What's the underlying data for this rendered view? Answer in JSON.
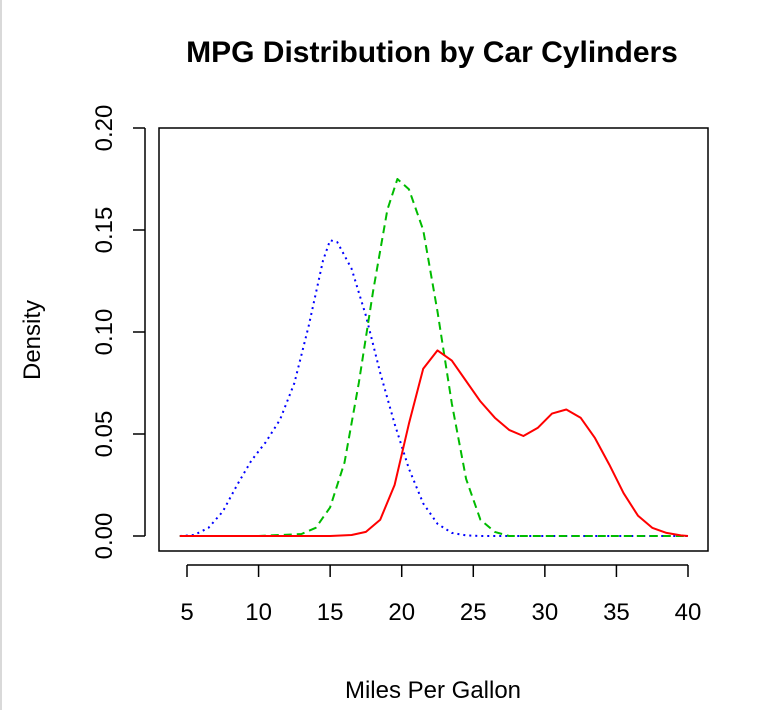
{
  "chart_data": {
    "type": "line",
    "title": "MPG Distribution by Car Cylinders",
    "xlabel": "Miles Per Gallon",
    "ylabel": "Density",
    "xlim": [
      5,
      40
    ],
    "ylim": [
      0,
      0.2
    ],
    "x_ticks": [
      "5",
      "10",
      "15",
      "20",
      "25",
      "30",
      "35",
      "40"
    ],
    "y_ticks": [
      "0.00",
      "0.05",
      "0.10",
      "0.15",
      "0.20"
    ],
    "grid": false,
    "legend": "none",
    "series": [
      {
        "color": "#0000ff",
        "line_style": "dotted",
        "x": [
          4.5,
          5.5,
          6.5,
          7.5,
          8.5,
          9.5,
          10.5,
          11.5,
          12.5,
          13.5,
          14.5,
          15.0,
          15.5,
          16.5,
          17.5,
          18.5,
          19.5,
          20.5,
          21.5,
          22.5,
          23.5,
          24.5,
          25.5,
          26.5,
          28,
          30,
          35,
          40
        ],
        "y": [
          0.0,
          0.0005,
          0.004,
          0.012,
          0.025,
          0.037,
          0.046,
          0.057,
          0.075,
          0.103,
          0.135,
          0.145,
          0.144,
          0.131,
          0.108,
          0.08,
          0.055,
          0.033,
          0.016,
          0.006,
          0.0015,
          0.0003,
          0.0,
          0.0,
          0.0,
          0.0,
          0.0,
          0.0
        ]
      },
      {
        "color": "#00bb00",
        "line_style": "dashed",
        "x": [
          4.5,
          10,
          13,
          14,
          15,
          16,
          17,
          18,
          19,
          19.7,
          20.5,
          21.5,
          22.5,
          23.5,
          24.5,
          25.5,
          26.5,
          27.5,
          30,
          35,
          40
        ],
        "y": [
          0.0,
          0.0,
          0.001,
          0.004,
          0.014,
          0.036,
          0.075,
          0.12,
          0.16,
          0.175,
          0.17,
          0.15,
          0.11,
          0.065,
          0.028,
          0.008,
          0.002,
          0.0,
          0.0,
          0.0,
          0.0
        ]
      },
      {
        "color": "#ff0000",
        "line_style": "solid",
        "x": [
          4.5,
          10,
          15,
          16.5,
          17.5,
          18.5,
          19.5,
          20.5,
          21.5,
          22.5,
          23.5,
          24.5,
          25.5,
          26.5,
          27.5,
          28.5,
          29.5,
          30.5,
          31.5,
          32.5,
          33.5,
          34.5,
          35.5,
          36.5,
          37.5,
          38.5,
          39.5,
          40
        ],
        "y": [
          0.0,
          0.0,
          0.0,
          0.0005,
          0.002,
          0.008,
          0.025,
          0.055,
          0.082,
          0.091,
          0.086,
          0.076,
          0.066,
          0.058,
          0.052,
          0.049,
          0.053,
          0.06,
          0.062,
          0.058,
          0.048,
          0.035,
          0.021,
          0.01,
          0.004,
          0.0015,
          0.0003,
          0.0
        ]
      }
    ]
  }
}
